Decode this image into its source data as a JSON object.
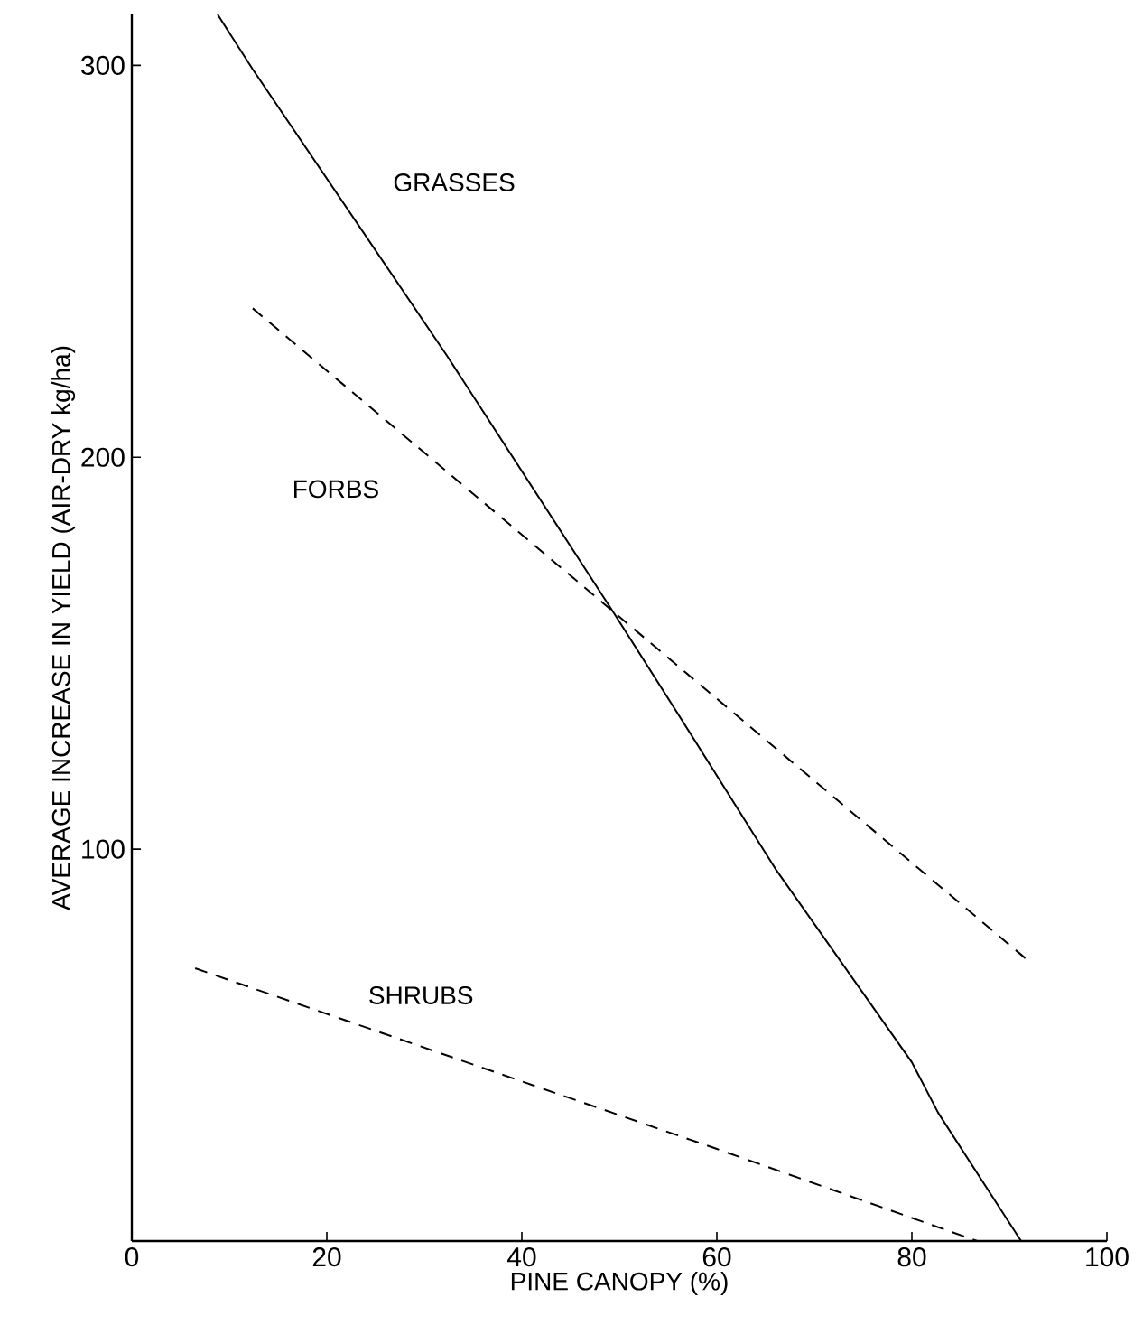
{
  "chart_data": {
    "type": "line",
    "xlabel": "PINE CANOPY (%)",
    "ylabel": "AVERAGE INCREASE IN YIELD (AIR-DRY kg/ha)",
    "xlim": [
      0,
      100
    ],
    "ylim": [
      0,
      313
    ],
    "xticks": [
      0,
      20,
      40,
      60,
      80,
      100
    ],
    "yticks": [
      100,
      200,
      300
    ],
    "grid": false,
    "legend": false,
    "marker": "none",
    "series": [
      {
        "name": "GRASSES",
        "color": "#000000",
        "line_style": "solid",
        "x": [
          8.8,
          12.4,
          32.3,
          49.5,
          56.4,
          66,
          80,
          82.7,
          91.2
        ],
        "values": [
          313,
          299,
          226,
          160,
          133,
          95,
          45.6,
          32.7,
          0
        ]
      },
      {
        "name": "FORBS",
        "color": "#000000",
        "line_style": "dashed",
        "x": [
          12.4,
          92
        ],
        "values": [
          238,
          71.4
        ]
      },
      {
        "name": "SHRUBS",
        "color": "#000000",
        "line_style": "dashed",
        "x": [
          6.5,
          60,
          86.7
        ],
        "values": [
          69.6,
          23.5,
          0
        ]
      }
    ]
  }
}
